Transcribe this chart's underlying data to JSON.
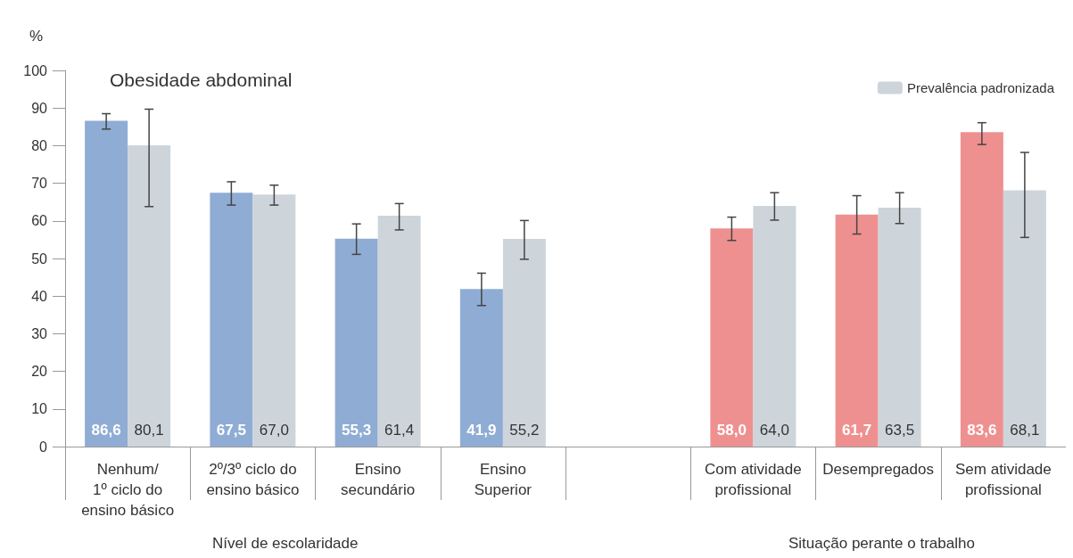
{
  "chart_data": {
    "type": "bar",
    "title": "Obesidade abdominal",
    "ylabel": "%",
    "categories": [
      "Nenhum/\n1º ciclo do\nensino básico",
      "2º/3º ciclo do\nensino básico",
      "Ensino\nsecundário",
      "Ensino\nSuperior",
      null,
      "Com atividade\nprofissional",
      "Desempregados",
      "Sem atividade\nprofissional"
    ],
    "series": [
      {
        "colors": [
          "#8facd4",
          "#8facd4",
          "#8facd4",
          "#8facd4",
          null,
          "#ef9090",
          "#ef9090",
          "#ef9090"
        ],
        "values": [
          86.6,
          67.5,
          55.3,
          41.9,
          null,
          58.0,
          61.7,
          83.6
        ],
        "value_labels": [
          "86,6",
          "67,5",
          "55,3",
          "41,9",
          null,
          "58,0",
          "61,7",
          "83,6"
        ],
        "errors": [
          [
            84.4,
            88.5
          ],
          [
            64.2,
            70.4
          ],
          [
            51.1,
            59.2
          ],
          [
            37.5,
            46.1
          ],
          null,
          [
            54.8,
            61.0
          ],
          [
            56.5,
            66.7
          ],
          [
            80.3,
            86.1
          ]
        ]
      },
      {
        "name": "Prevalência padronizada",
        "color": "#cdd5db",
        "values": [
          80.1,
          67.0,
          61.4,
          55.2,
          null,
          64.0,
          63.5,
          68.1
        ],
        "value_labels": [
          "80,1",
          "67,0",
          "61,4",
          "55,2",
          null,
          "64,0",
          "63,5",
          "68,1"
        ],
        "errors": [
          [
            63.8,
            89.7
          ],
          [
            64.2,
            69.5
          ],
          [
            57.6,
            64.6
          ],
          [
            49.8,
            60.1
          ],
          null,
          [
            60.2,
            67.5
          ],
          [
            59.3,
            67.5
          ],
          [
            55.6,
            78.2
          ]
        ]
      }
    ],
    "ylim": [
      0,
      100
    ],
    "yticks": [
      0,
      10,
      20,
      30,
      40,
      50,
      60,
      70,
      80,
      90,
      100
    ],
    "grid": false,
    "legend": "top right",
    "annotations": [
      "Nível de escolaridade",
      "Situação perante o trabalho"
    ]
  }
}
